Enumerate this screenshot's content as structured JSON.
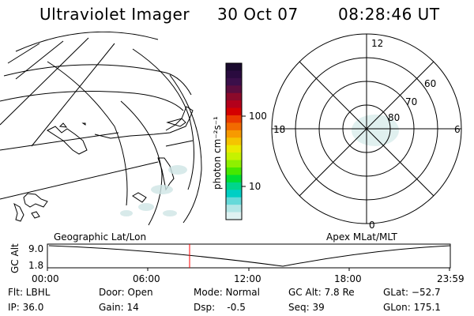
{
  "header": {
    "title": "Ultraviolet Imager",
    "date": "30 Oct 07",
    "time": "08:28:46 UT"
  },
  "map_left": {
    "caption": "Geographic Lat/Lon"
  },
  "map_right": {
    "caption": "Apex MLat/MLT",
    "mlt_labels": [
      "12",
      "18",
      "6",
      "0"
    ],
    "mlat_labels": [
      "60",
      "70",
      "80"
    ]
  },
  "colorbar": {
    "unit_label": "photon cm⁻²s⁻¹",
    "tick_labels": [
      "100",
      "10"
    ],
    "colors": [
      "#1a0a2e",
      "#2a0b3f",
      "#3b0f4a",
      "#5c0d3e",
      "#8b0a2a",
      "#b3001b",
      "#d40000",
      "#ea3b00",
      "#f26a00",
      "#f79a00",
      "#f5c400",
      "#eaea00",
      "#c6f200",
      "#8ef000",
      "#46e800",
      "#00de33",
      "#00d58c",
      "#00cfc4",
      "#66d9d9",
      "#b3e6e6",
      "#dff2f2"
    ]
  },
  "altitude_plot": {
    "ylabel": "GC Alt",
    "y_ticks": [
      "9.0",
      "1.8"
    ],
    "x_ticks": [
      "00:00",
      "06:00",
      "12:00",
      "18:00",
      "23:59"
    ],
    "current_time_fraction": 0.353
  },
  "footer": {
    "filter": "Flt: LBHL",
    "ip": "IP: 36.0",
    "door": "Door: Open",
    "gain": "Gain: 14",
    "mode": "Mode: Normal",
    "dsp": "Dsp:    -0.5",
    "gc_alt": "GC Alt: 7.8 Re",
    "seq": "Seq: 39",
    "glat": "GLat: −52.7",
    "glon": "GLon: 175.1"
  }
}
